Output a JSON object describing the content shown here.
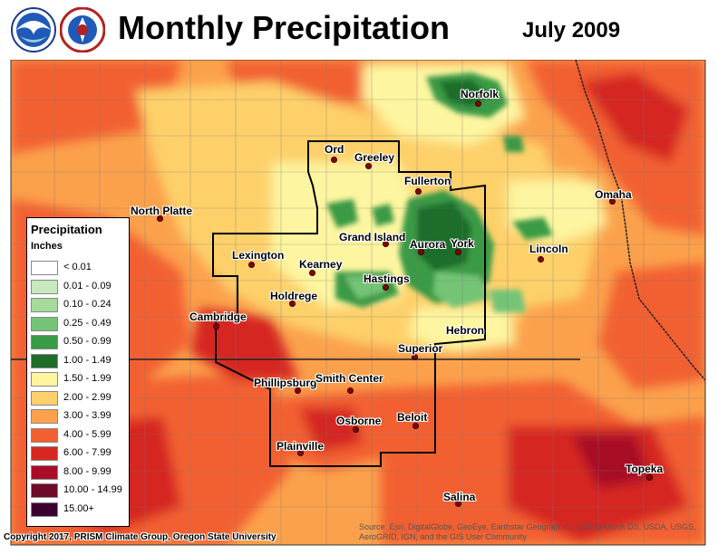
{
  "title": "Monthly Precipitation",
  "date": "July 2009",
  "legend": {
    "title": "Precipitation",
    "units": "Inches",
    "items": [
      {
        "label": "< 0.01",
        "color": "#ffffff"
      },
      {
        "label": "0.01 - 0.09",
        "color": "#c8e8c0"
      },
      {
        "label": "0.10 - 0.24",
        "color": "#a6d99a"
      },
      {
        "label": "0.25 - 0.49",
        "color": "#74c476"
      },
      {
        "label": "0.50 - 0.99",
        "color": "#3a9a45"
      },
      {
        "label": "1.00 - 1.49",
        "color": "#1e6e2a"
      },
      {
        "label": "1.50 - 1.99",
        "color": "#fdf5a0"
      },
      {
        "label": "2.00 - 2.99",
        "color": "#fdd06a"
      },
      {
        "label": "3.00 - 3.99",
        "color": "#fba14c"
      },
      {
        "label": "4.00 - 5.99",
        "color": "#f26030"
      },
      {
        "label": "6.00 - 7.99",
        "color": "#d62820"
      },
      {
        "label": "8.00 - 9.99",
        "color": "#a80c28"
      },
      {
        "label": "10.00 - 14.99",
        "color": "#6e0a2a"
      },
      {
        "label": "15.00+",
        "color": "#3c0030"
      }
    ]
  },
  "cities": [
    {
      "name": "Norfolk"
    },
    {
      "name": "Ord"
    },
    {
      "name": "Greeley"
    },
    {
      "name": "Fullerton"
    },
    {
      "name": "Omaha"
    },
    {
      "name": "North Platte"
    },
    {
      "name": "Grand Island"
    },
    {
      "name": "Aurora"
    },
    {
      "name": "York"
    },
    {
      "name": "Lincoln"
    },
    {
      "name": "Lexington"
    },
    {
      "name": "Kearney"
    },
    {
      "name": "Hastings"
    },
    {
      "name": "Holdrege"
    },
    {
      "name": "Cambridge"
    },
    {
      "name": "Hebron"
    },
    {
      "name": "Superior"
    },
    {
      "name": "Phillipsburg"
    },
    {
      "name": "Smith Center"
    },
    {
      "name": "Osborne"
    },
    {
      "name": "Beloit"
    },
    {
      "name": "Plainville"
    },
    {
      "name": "Topeka"
    },
    {
      "name": "Salina"
    }
  ],
  "copyright": "Copyright 2017, PRISM Climate Group, Oregon State University",
  "source": "Source: Esri, DigitalGlobe, GeoEye, Earthstar Geographics, CNES/Airbus DS, USDA, USGS, AeroGRID, IGN, and the GIS User Community"
}
